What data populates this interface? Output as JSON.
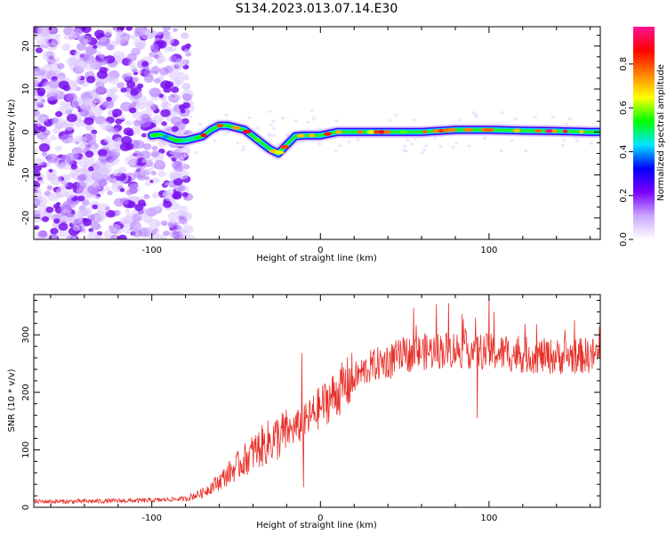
{
  "title": "S134.2023.013.07.14.E30",
  "chart_data": [
    {
      "type": "heatmap",
      "title": "S134.2023.013.07.14.E30",
      "xlabel": "Height of straight line (km)",
      "ylabel": "Frequency (Hz)",
      "xlim": [
        -170,
        166
      ],
      "ylim": [
        -25,
        24.5
      ],
      "xticks": [
        -100,
        0,
        100
      ],
      "yticks": [
        -20,
        -10,
        0,
        10,
        20
      ],
      "colorbar": {
        "label": "Normalized spectral amplitude",
        "ticks": [
          0.0,
          0.2,
          0.4,
          0.6,
          0.8
        ],
        "range": [
          0,
          0.97
        ],
        "colormap": [
          "#ffffff",
          "#c9a6ff",
          "#7b00ff",
          "#0000ff",
          "#00e5ff",
          "#00ff00",
          "#ffff00",
          "#ff8000",
          "#ff0000",
          "#ff1493"
        ]
      },
      "noise_region": {
        "x": [
          -170,
          -78
        ],
        "note": "scattered low-amplitude spectral energy across all frequencies"
      },
      "ridge": {
        "x": [
          -100,
          -95,
          -85,
          -80,
          -70,
          -65,
          -60,
          -55,
          -50,
          -45,
          -40,
          -35,
          -30,
          -25,
          -20,
          -15,
          -10,
          -5,
          0,
          10,
          20,
          40,
          60,
          80,
          100,
          120,
          140,
          160,
          166
        ],
        "y": [
          -0.8,
          -0.6,
          -2.0,
          -2.0,
          -1.0,
          0.5,
          1.5,
          1.5,
          1.0,
          0.5,
          -1.0,
          -2.5,
          -4.0,
          -5.0,
          -3.0,
          -1.0,
          -0.8,
          -0.8,
          -0.8,
          0.0,
          0.0,
          0.0,
          0.0,
          0.5,
          0.5,
          0.3,
          0.2,
          0.0,
          0.0
        ],
        "peak_amplitude": 0.95
      }
    },
    {
      "type": "line",
      "xlabel": "Height of straight line (km)",
      "ylabel": "SNR (10 * v/v)",
      "xlim": [
        -170,
        166
      ],
      "ylim": [
        0,
        370
      ],
      "xticks": [
        -100,
        0,
        100
      ],
      "yticks": [
        0,
        100,
        200,
        300
      ],
      "color": "#e8302a",
      "trend": {
        "x": [
          -170,
          -150,
          -100,
          -80,
          -70,
          -60,
          -50,
          -40,
          -30,
          -20,
          -10,
          0,
          10,
          20,
          30,
          40,
          50,
          60,
          80,
          100,
          120,
          140,
          166
        ],
        "y": [
          10,
          10,
          12,
          15,
          25,
          45,
          70,
          95,
          115,
          130,
          145,
          175,
          200,
          225,
          245,
          255,
          265,
          270,
          275,
          270,
          265,
          262,
          265
        ]
      },
      "spikes": [
        {
          "x": -11,
          "y": 268
        },
        {
          "x": -10,
          "y": 35
        },
        {
          "x": 92,
          "y": 330
        },
        {
          "x": 95,
          "y": 300
        },
        {
          "x": 100,
          "y": 370
        },
        {
          "x": 103,
          "y": 340
        },
        {
          "x": 93,
          "y": 155
        }
      ]
    }
  ]
}
